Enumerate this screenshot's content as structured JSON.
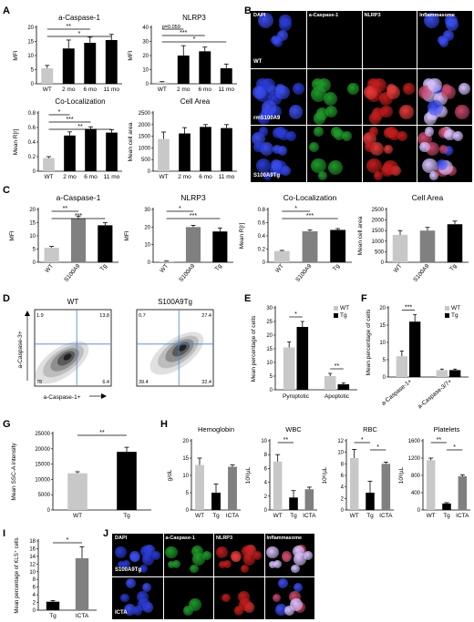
{
  "panels": {
    "A": {
      "label": "A",
      "charts": [
        {
          "title": "a-Caspase-1",
          "ylabel": "MFI",
          "categories": [
            "WT",
            "2 mo",
            "6 mo",
            "11 mo"
          ],
          "values": [
            5.5,
            12.5,
            14.5,
            15.5
          ],
          "errors": [
            1,
            3,
            2,
            2
          ],
          "ylim": [
            0,
            20
          ],
          "ticks": [
            "0",
            "5",
            "10",
            "15",
            "20"
          ],
          "colors": [
            "#c8c8c8",
            "#000000",
            "#000000",
            "#000000"
          ],
          "sig": [
            {
              "from": 0,
              "to": 2,
              "label": "**"
            },
            {
              "from": 0,
              "to": 3,
              "label": "*"
            }
          ]
        },
        {
          "title": "NLRP3",
          "ylabel": "MFI",
          "categories": [
            "WT",
            "2 mo",
            "6 mo",
            "11 mo"
          ],
          "values": [
            1,
            20,
            23,
            11
          ],
          "errors": [
            0.5,
            7,
            3,
            3
          ],
          "ylim": [
            0,
            40
          ],
          "ticks": [
            "0",
            "10",
            "20",
            "30",
            "40"
          ],
          "colors": [
            "#c8c8c8",
            "#000000",
            "#000000",
            "#000000"
          ],
          "sig": [
            {
              "from": 0,
              "to": 1,
              "label": "p=0.059"
            },
            {
              "from": 0,
              "to": 2,
              "label": "***"
            },
            {
              "from": 0,
              "to": 3,
              "label": "*"
            }
          ]
        },
        {
          "title": "Co-Localization",
          "ylabel": "Mean R[r]",
          "categories": [
            "WT",
            "2 mo",
            "6 mo",
            "11 mo"
          ],
          "values": [
            0.18,
            0.49,
            0.58,
            0.53
          ],
          "errors": [
            0.02,
            0.05,
            0.03,
            0.04
          ],
          "ylim": [
            0,
            0.8
          ],
          "ticks": [
            "0",
            "0.2",
            "0.4",
            "0.6",
            "0.8"
          ],
          "colors": [
            "#c8c8c8",
            "#000000",
            "#000000",
            "#000000"
          ],
          "sig": [
            {
              "from": 0,
              "to": 1,
              "label": "*"
            },
            {
              "from": 0,
              "to": 2,
              "label": "***"
            },
            {
              "from": 0,
              "to": 3,
              "label": "**"
            }
          ]
        },
        {
          "title": "Cell Area",
          "ylabel": "Mean cell area",
          "categories": [
            "WT",
            "2 mo",
            "6 mo",
            "11 mo"
          ],
          "values": [
            1380,
            1620,
            1900,
            1850
          ],
          "errors": [
            300,
            250,
            100,
            150
          ],
          "ylim": [
            0,
            2500
          ],
          "ticks": [
            "0",
            "500",
            "1000",
            "1500",
            "2000",
            "2500"
          ],
          "colors": [
            "#c8c8c8",
            "#000000",
            "#000000",
            "#000000"
          ],
          "sig": []
        }
      ]
    },
    "B": {
      "label": "B",
      "headers": [
        "DAPI",
        "a-Caspase-1",
        "NLRP3",
        "Inflammasome"
      ],
      "rows": [
        "WT",
        "rmS100A9",
        "S100A9Tg"
      ]
    },
    "C": {
      "label": "C",
      "charts": [
        {
          "title": "a-Caspase-1",
          "ylabel": "MFI",
          "categories": [
            "WT",
            "S100A9",
            "Tg"
          ],
          "values": [
            5.5,
            16.5,
            14
          ],
          "errors": [
            0.5,
            1,
            1
          ],
          "ylim": [
            0,
            20
          ],
          "ticks": [
            "0",
            "5",
            "10",
            "15",
            "20"
          ],
          "colors": [
            "#c8c8c8",
            "#808080",
            "#000000"
          ],
          "sig": [
            {
              "from": 0,
              "to": 1,
              "label": "**"
            },
            {
              "from": 0,
              "to": 2,
              "label": "***"
            }
          ]
        },
        {
          "title": "NLRP3",
          "ylabel": "MFI",
          "categories": [
            "WT",
            "S100A9",
            "Tg"
          ],
          "values": [
            0.5,
            20,
            17.5
          ],
          "errors": [
            0.2,
            1,
            2
          ],
          "ylim": [
            0,
            30
          ],
          "ticks": [
            "0",
            "10",
            "20",
            "30"
          ],
          "colors": [
            "#c8c8c8",
            "#808080",
            "#000000"
          ],
          "sig": [
            {
              "from": 0,
              "to": 1,
              "label": "*"
            },
            {
              "from": 0,
              "to": 2,
              "label": "***"
            }
          ]
        },
        {
          "title": "Co-Localization",
          "ylabel": "Mean R[r]",
          "categories": [
            "WT",
            "S100A9",
            "Tg"
          ],
          "values": [
            0.17,
            0.47,
            0.49
          ],
          "errors": [
            0.01,
            0.02,
            0.02
          ],
          "ylim": [
            0,
            0.8
          ],
          "ticks": [
            "0",
            "0.2",
            "0.4",
            "0.6",
            "0.8"
          ],
          "colors": [
            "#c8c8c8",
            "#808080",
            "#000000"
          ],
          "sig": [
            {
              "from": 0,
              "to": 1,
              "label": "*"
            },
            {
              "from": 0,
              "to": 2,
              "label": "***"
            }
          ]
        },
        {
          "title": "Cell Area",
          "ylabel": "Mean cell area",
          "categories": [
            "WT",
            "S100A9",
            "Tg"
          ],
          "values": [
            1300,
            1500,
            1800
          ],
          "errors": [
            200,
            150,
            150
          ],
          "ylim": [
            0,
            2500
          ],
          "ticks": [
            "0",
            "500",
            "1000",
            "1500",
            "2000",
            "2500"
          ],
          "colors": [
            "#c8c8c8",
            "#808080",
            "#000000"
          ],
          "sig": []
        }
      ]
    },
    "D": {
      "label": "D",
      "plots": [
        {
          "title": "WT",
          "quadrants": [
            "1.9",
            "13.8",
            "78",
            "6.4"
          ]
        },
        {
          "title": "S100A9Tg",
          "quadrants": [
            "0.7",
            "27.4",
            "39.4",
            "32.4"
          ]
        }
      ],
      "yaxis": "a-Caspase-3+",
      "xaxis": "a-Caspase-1+"
    },
    "E": {
      "label": "E",
      "chart": {
        "type": "bar",
        "ylabel": "Mean percentage of cells",
        "groups": [
          "Pyroptotic",
          "Apoptotic"
        ],
        "series": [
          {
            "name": "WT",
            "color": "#c8c8c8",
            "values": [
              15.5,
              5
            ]
          },
          {
            "name": "Tg",
            "color": "#000000",
            "values": [
              23,
              2
            ]
          }
        ],
        "errors": [
          [
            2,
            1
          ],
          [
            2,
            0.5
          ]
        ],
        "ylim": [
          0,
          30
        ],
        "ticks": [
          "0",
          "5",
          "10",
          "15",
          "20",
          "25",
          "30"
        ],
        "sig": [
          {
            "group": 0,
            "label": "*"
          },
          {
            "group": 1,
            "label": "**"
          }
        ]
      }
    },
    "F": {
      "label": "F",
      "chart": {
        "type": "bar",
        "ylabel": "Mean percentage of cells",
        "groups": [
          "a-Caspase-1+",
          "a-Caspase-3/7+"
        ],
        "series": [
          {
            "name": "WT",
            "color": "#c8c8c8",
            "values": [
              6,
              2
            ]
          },
          {
            "name": "Tg",
            "color": "#000000",
            "values": [
              16,
              2
            ]
          }
        ],
        "errors": [
          [
            1.5,
            0.3
          ],
          [
            2,
            0.3
          ]
        ],
        "ylim": [
          0,
          20
        ],
        "ticks": [
          "0",
          "5",
          "10",
          "15",
          "20"
        ],
        "sig": [
          {
            "group": 0,
            "label": "***"
          }
        ]
      }
    },
    "G": {
      "label": "G",
      "chart": {
        "title": "",
        "ylabel": "Mean SSC-A intensity",
        "categories": [
          "WT",
          "Tg"
        ],
        "values": [
          12000,
          19000
        ],
        "errors": [
          500,
          1500
        ],
        "ylim": [
          0,
          25000
        ],
        "ticks": [
          "0",
          "5000",
          "10000",
          "15000",
          "20000",
          "25000"
        ],
        "colors": [
          "#c8c8c8",
          "#000000"
        ],
        "sig": [
          {
            "from": 0,
            "to": 1,
            "label": "**"
          }
        ]
      }
    },
    "H": {
      "label": "H",
      "charts": [
        {
          "title": "Hemoglobin",
          "ylabel": "g/dL",
          "categories": [
            "WT",
            "Tg",
            "ICTA"
          ],
          "values": [
            13,
            5,
            12.5
          ],
          "errors": [
            2,
            2.5,
            0.5
          ],
          "ylim": [
            0,
            20
          ],
          "ticks": [
            "0",
            "5",
            "10",
            "15",
            "20"
          ],
          "colors": [
            "#c8c8c8",
            "#000000",
            "#808080"
          ],
          "sig": []
        },
        {
          "title": "WBC",
          "ylabel": "10³/µL",
          "categories": [
            "WT",
            "Tg",
            "ICTA"
          ],
          "values": [
            7,
            1.8,
            3
          ],
          "errors": [
            1,
            1,
            0.3
          ],
          "ylim": [
            0,
            10
          ],
          "ticks": [
            "0",
            "2",
            "4",
            "6",
            "8",
            "10"
          ],
          "colors": [
            "#c8c8c8",
            "#000000",
            "#808080"
          ],
          "sig": [
            {
              "from": 0,
              "to": 1,
              "label": "**"
            }
          ]
        },
        {
          "title": "RBC",
          "ylabel": "10⁶/µL",
          "categories": [
            "WT",
            "Tg",
            "ICTA"
          ],
          "values": [
            9,
            3,
            8
          ],
          "errors": [
            1.5,
            2,
            0.3
          ],
          "ylim": [
            0,
            12
          ],
          "ticks": [
            "0",
            "2",
            "4",
            "6",
            "8",
            "10",
            "12"
          ],
          "colors": [
            "#c8c8c8",
            "#000000",
            "#808080"
          ],
          "sig": [
            {
              "from": 0,
              "to": 1,
              "label": "*"
            },
            {
              "from": 1,
              "to": 2,
              "label": "*"
            }
          ]
        },
        {
          "title": "Platelets",
          "ylabel": "10³/µL",
          "categories": [
            "WT",
            "Tg",
            "ICTA"
          ],
          "values": [
            1150,
            150,
            780
          ],
          "errors": [
            50,
            20,
            30
          ],
          "ylim": [
            0,
            1600
          ],
          "ticks": [
            "0",
            "400",
            "800",
            "1200",
            "1600"
          ],
          "colors": [
            "#c8c8c8",
            "#000000",
            "#808080"
          ],
          "sig": [
            {
              "from": 0,
              "to": 1,
              "label": "**"
            },
            {
              "from": 1,
              "to": 2,
              "label": "*"
            }
          ]
        }
      ]
    },
    "I": {
      "label": "I",
      "chart": {
        "title": "",
        "ylabel": "Mean percentage of KLS⁺ cells",
        "categories": [
          "Tg",
          "ICTA"
        ],
        "values": [
          2.2,
          13.5
        ],
        "errors": [
          0.3,
          3
        ],
        "ylim": [
          0,
          18
        ],
        "ticks": [
          "0",
          "2",
          "4",
          "6",
          "8",
          "10",
          "12",
          "14",
          "16",
          "18"
        ],
        "colors": [
          "#000000",
          "#808080"
        ],
        "sig": [
          {
            "from": 0,
            "to": 1,
            "label": "*"
          }
        ]
      }
    },
    "J": {
      "label": "J",
      "headers": [
        "DAPI",
        "a-Caspase-1",
        "NLRP3",
        "Inflammasome"
      ],
      "rows": [
        "S100A9Tg",
        "ICTA"
      ]
    }
  }
}
